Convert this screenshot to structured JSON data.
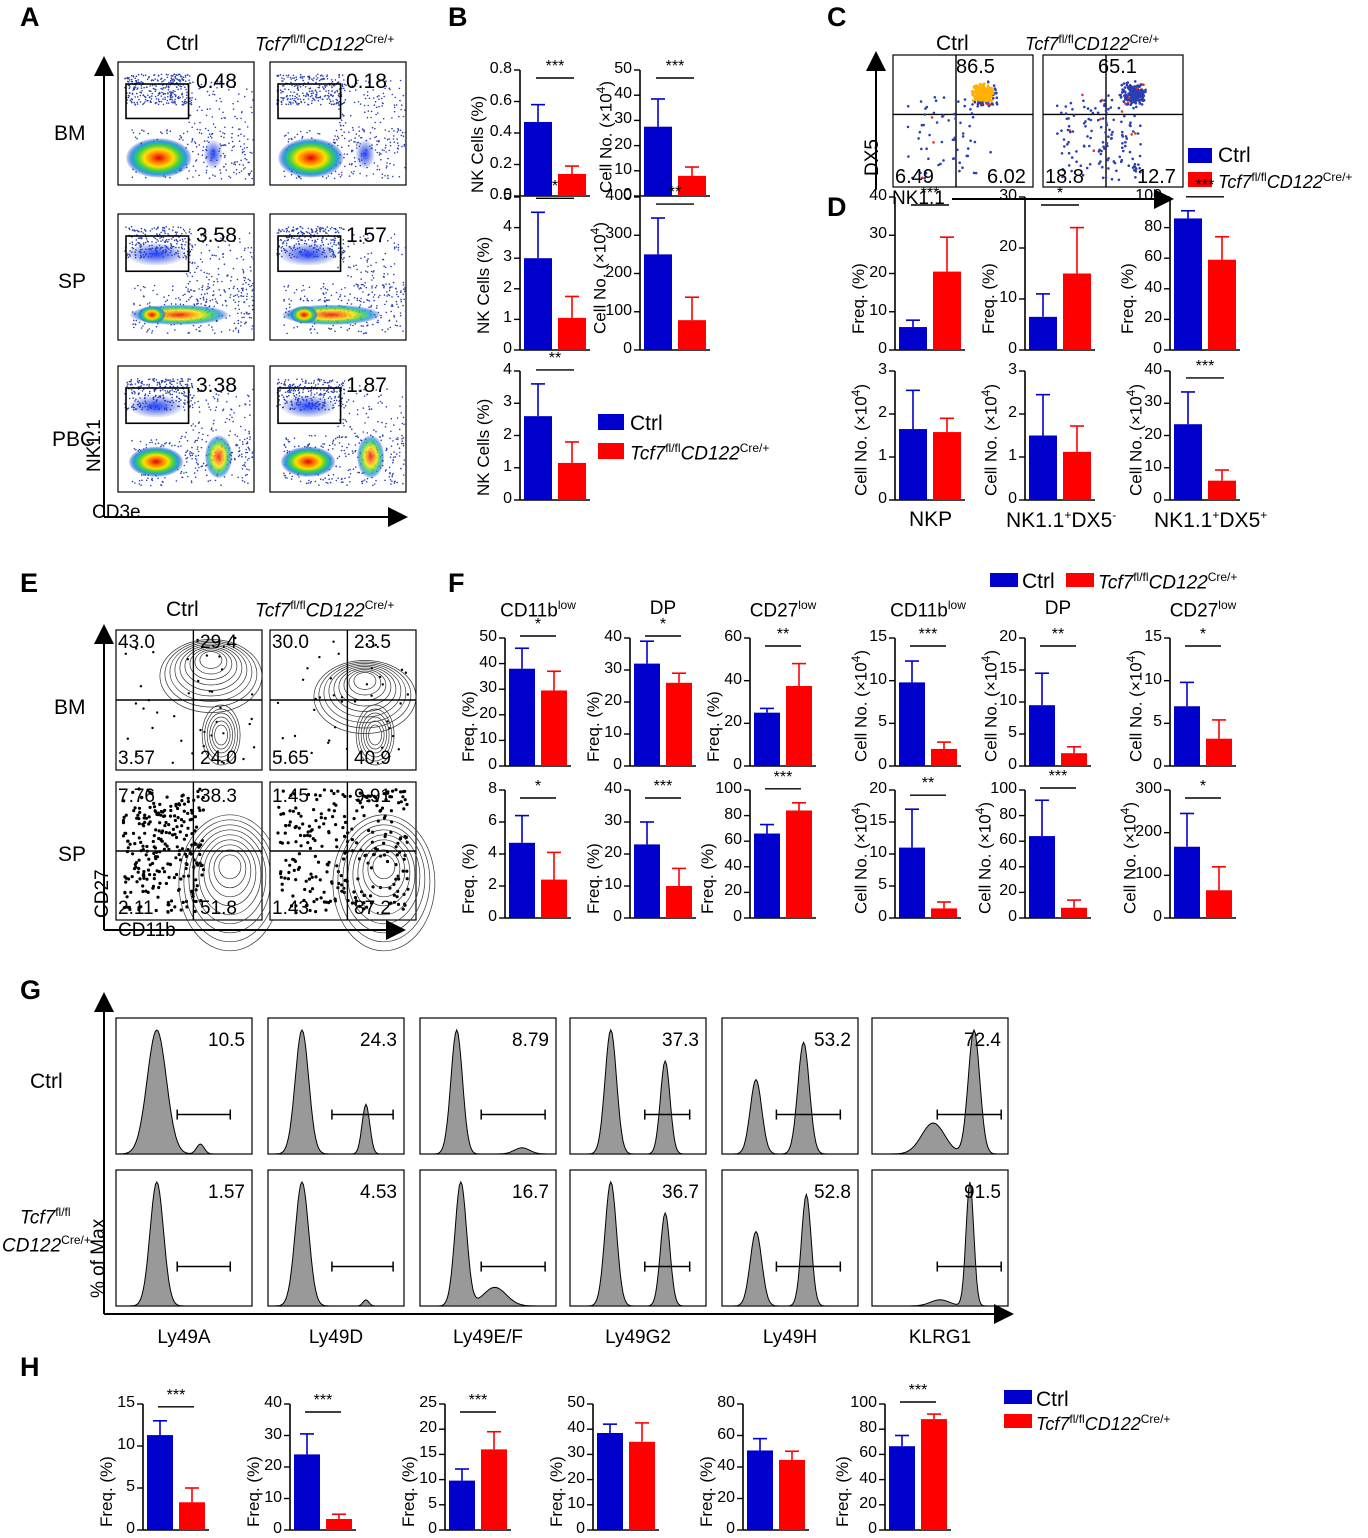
{
  "figure": {
    "panel_labels": [
      "A",
      "B",
      "C",
      "D",
      "E",
      "F",
      "G",
      "H"
    ],
    "legend": {
      "ctrl": "Ctrl",
      "ko_italic": "Tcf7",
      "ko_sup1": "fl/fl",
      "ko_italic2": "CD122",
      "ko_sup2": "Cre/+"
    },
    "colors": {
      "ctrl": "#0000cc",
      "ko": "#ff0000",
      "histogram": "#999999"
    }
  },
  "panel_A": {
    "col_labels": [
      "Ctrl",
      "Tcf7fl/flCD122Cre/+"
    ],
    "row_labels": [
      "BM",
      "SP",
      "PBC"
    ],
    "gate_values": [
      [
        "0.48",
        "0.18"
      ],
      [
        "3.58",
        "1.57"
      ],
      [
        "3.38",
        "1.87"
      ]
    ],
    "y_axis": "NK1.1",
    "x_axis": "CD3e"
  },
  "panel_C": {
    "col_labels": [
      "Ctrl",
      "Tcf7fl/flCD122Cre/+"
    ],
    "quadrants": [
      [
        "86.5",
        "6.49",
        "6.02"
      ],
      [
        "65.1",
        "18.8",
        "12.7"
      ]
    ],
    "y_axis": "DX5",
    "x_axis": "NK1.1"
  },
  "panel_E": {
    "col_labels": [
      "Ctrl",
      "Tcf7fl/flCD122Cre/+"
    ],
    "row_labels": [
      "BM",
      "SP"
    ],
    "quadrants": [
      [
        [
          "43.0",
          "29.4",
          "3.57",
          "24.0"
        ],
        [
          "30.0",
          "23.5",
          "5.65",
          "40.9"
        ]
      ],
      [
        [
          "7.76",
          "38.3",
          "2.11",
          "51.8"
        ],
        [
          "1.45",
          "9.91",
          "1.43",
          "87.2"
        ]
      ]
    ],
    "y_axis": "CD27",
    "x_axis": "CD11b"
  },
  "panel_G": {
    "markers": [
      "Ly49A",
      "Ly49D",
      "Ly49E/F",
      "Ly49G2",
      "Ly49H",
      "KLRG1"
    ],
    "row_labels": [
      "Ctrl",
      "Tcf7fl/fl CD122Cre/+"
    ],
    "values": [
      [
        "10.5",
        "24.3",
        "8.79",
        "37.3",
        "53.2",
        "72.4"
      ],
      [
        "1.57",
        "4.53",
        "16.7",
        "36.7",
        "52.8",
        "91.5"
      ]
    ],
    "y_axis": "% of Max"
  },
  "panel_D_xlabels": [
    "NKP",
    "NK1.1+DX5-",
    "NK1.1+DX5+"
  ],
  "chart_data": [
    {
      "id": "B1",
      "type": "bar",
      "ylabel": "NK Cells (%)",
      "ticks": [
        "0.0",
        "0.2",
        "0.4",
        "0.6",
        "0.8"
      ],
      "ylim": [
        0,
        0.8
      ],
      "values": [
        0.47,
        0.14
      ],
      "errors": [
        0.11,
        0.05
      ],
      "sig": "***"
    },
    {
      "id": "B2",
      "type": "bar",
      "ylabel": "Cell No. (×10⁴)",
      "ticks": [
        "0",
        "10",
        "20",
        "30",
        "40",
        "50"
      ],
      "ylim": [
        0,
        50
      ],
      "values": [
        27.5,
        8
      ],
      "errors": [
        11,
        3.5
      ],
      "sig": "***"
    },
    {
      "id": "B3",
      "type": "bar",
      "ylabel": "NK Cells (%)",
      "ticks": [
        "0",
        "1",
        "2",
        "3",
        "4",
        "5"
      ],
      "ylim": [
        0,
        5
      ],
      "values": [
        3.0,
        1.05
      ],
      "errors": [
        1.5,
        0.7
      ],
      "sig": "*"
    },
    {
      "id": "B4",
      "type": "bar",
      "ylabel": "Cell No. (×10⁴)",
      "ticks": [
        "0",
        "100",
        "200",
        "300",
        "400"
      ],
      "ylim": [
        0,
        400
      ],
      "values": [
        250,
        78
      ],
      "errors": [
        95,
        60
      ],
      "sig": "**"
    },
    {
      "id": "B5",
      "type": "bar",
      "ylabel": "NK Cells (%)",
      "ticks": [
        "0",
        "1",
        "2",
        "3",
        "4"
      ],
      "ylim": [
        0,
        4
      ],
      "values": [
        2.6,
        1.15
      ],
      "errors": [
        1.0,
        0.65
      ],
      "sig": "**"
    },
    {
      "id": "D1",
      "type": "bar",
      "ylabel": "Freq. (%)",
      "ticks": [
        "0",
        "10",
        "20",
        "30",
        "40"
      ],
      "ylim": [
        0,
        40
      ],
      "values": [
        6,
        20.5
      ],
      "errors": [
        1.8,
        9
      ],
      "sig": "***"
    },
    {
      "id": "D2",
      "type": "bar",
      "ylabel": "Freq. (%)",
      "ticks": [
        "0",
        "10",
        "20",
        "30"
      ],
      "ylim": [
        0,
        30
      ],
      "values": [
        6.5,
        15
      ],
      "errors": [
        4.5,
        9
      ],
      "sig": "*"
    },
    {
      "id": "D3",
      "type": "bar",
      "ylabel": "Freq. (%)",
      "ticks": [
        "0",
        "20",
        "40",
        "60",
        "80",
        "100"
      ],
      "ylim": [
        0,
        100
      ],
      "values": [
        86,
        59
      ],
      "errors": [
        5,
        15
      ],
      "sig": "***"
    },
    {
      "id": "D4",
      "type": "bar",
      "ylabel": "Cell No. (×10⁴)",
      "ticks": [
        "0",
        "1",
        "2",
        "3"
      ],
      "ylim": [
        0,
        3
      ],
      "values": [
        1.65,
        1.58
      ],
      "errors": [
        0.9,
        0.32
      ],
      "sig": "",
      "xlabel": "NKP"
    },
    {
      "id": "D5",
      "type": "bar",
      "ylabel": "Cell No. (×10⁴)",
      "ticks": [
        "0",
        "1",
        "2",
        "3"
      ],
      "ylim": [
        0,
        3
      ],
      "values": [
        1.5,
        1.12
      ],
      "errors": [
        0.95,
        0.6
      ],
      "sig": "",
      "xlabel": "NK1.1+DX5-"
    },
    {
      "id": "D6",
      "type": "bar",
      "ylabel": "Cell No. (×10⁴)",
      "ticks": [
        "0",
        "10",
        "20",
        "30",
        "40"
      ],
      "ylim": [
        0,
        40
      ],
      "values": [
        23.5,
        6
      ],
      "errors": [
        10,
        3.3
      ],
      "sig": "***",
      "xlabel": "NK1.1+DX5+"
    },
    {
      "id": "F1",
      "type": "bar",
      "title": "CD11blow",
      "ylabel": "Freq. (%)",
      "ticks": [
        "0",
        "10",
        "20",
        "30",
        "40",
        "50"
      ],
      "ylim": [
        0,
        50
      ],
      "values": [
        38,
        29.5
      ],
      "errors": [
        8,
        7.5
      ],
      "sig": "*"
    },
    {
      "id": "F2",
      "type": "bar",
      "title": "DP",
      "ylabel": "Freq. (%)",
      "ticks": [
        "0",
        "10",
        "20",
        "30",
        "40"
      ],
      "ylim": [
        0,
        40
      ],
      "values": [
        32,
        26
      ],
      "errors": [
        7,
        3
      ],
      "sig": "*"
    },
    {
      "id": "F3",
      "type": "bar",
      "title": "CD27low",
      "ylabel": "Freq. (%)",
      "ticks": [
        "0",
        "20",
        "40",
        "60"
      ],
      "ylim": [
        0,
        60
      ],
      "values": [
        25,
        37.5
      ],
      "errors": [
        2,
        10.5
      ],
      "sig": "**"
    },
    {
      "id": "F4",
      "type": "bar",
      "title": "CD11blow",
      "ylabel": "Cell No. (×10⁴)",
      "ticks": [
        "0",
        "5",
        "10",
        "15"
      ],
      "ylim": [
        0,
        15
      ],
      "values": [
        9.8,
        2
      ],
      "errors": [
        2.5,
        0.8
      ],
      "sig": "***"
    },
    {
      "id": "F5",
      "type": "bar",
      "title": "DP",
      "ylabel": "Cell No. (×10⁴)",
      "ticks": [
        "0",
        "5",
        "10",
        "15",
        "20"
      ],
      "ylim": [
        0,
        20
      ],
      "values": [
        9.5,
        2
      ],
      "errors": [
        5,
        1
      ],
      "sig": "**"
    },
    {
      "id": "F6",
      "type": "bar",
      "title": "CD27low",
      "ylabel": "Cell No. (×10⁴)",
      "ticks": [
        "0",
        "5",
        "10",
        "15"
      ],
      "ylim": [
        0,
        15
      ],
      "values": [
        7,
        3.2
      ],
      "errors": [
        2.8,
        2.2
      ],
      "sig": "*"
    },
    {
      "id": "F7",
      "type": "bar",
      "ylabel": "Freq. (%)",
      "ticks": [
        "0",
        "2",
        "4",
        "6",
        "8"
      ],
      "ylim": [
        0,
        8
      ],
      "values": [
        4.7,
        2.4
      ],
      "errors": [
        1.7,
        1.7
      ],
      "sig": "*"
    },
    {
      "id": "F8",
      "type": "bar",
      "ylabel": "Freq. (%)",
      "ticks": [
        "0",
        "10",
        "20",
        "30",
        "40"
      ],
      "ylim": [
        0,
        40
      ],
      "values": [
        23,
        10
      ],
      "errors": [
        7,
        5.5
      ],
      "sig": "***"
    },
    {
      "id": "F9",
      "type": "bar",
      "ylabel": "Freq. (%)",
      "ticks": [
        "0",
        "20",
        "40",
        "60",
        "80",
        "100"
      ],
      "ylim": [
        0,
        100
      ],
      "values": [
        66,
        84
      ],
      "errors": [
        7,
        6
      ],
      "sig": "***"
    },
    {
      "id": "F10",
      "type": "bar",
      "ylabel": "Cell No. (×10⁴)",
      "ticks": [
        "0",
        "5",
        "10",
        "15",
        "20"
      ],
      "ylim": [
        0,
        20
      ],
      "values": [
        11,
        1.5
      ],
      "errors": [
        6,
        1
      ],
      "sig": "**"
    },
    {
      "id": "F11",
      "type": "bar",
      "ylabel": "Cell No. (×10⁴)",
      "ticks": [
        "0",
        "20",
        "40",
        "60",
        "80",
        "100"
      ],
      "ylim": [
        0,
        100
      ],
      "values": [
        64,
        8
      ],
      "errors": [
        28,
        6
      ],
      "sig": "***"
    },
    {
      "id": "F12",
      "type": "bar",
      "ylabel": "Cell No. (×10⁴)",
      "ticks": [
        "0",
        "100",
        "200",
        "300"
      ],
      "ylim": [
        0,
        300
      ],
      "values": [
        167,
        65
      ],
      "errors": [
        78,
        55
      ],
      "sig": "*"
    },
    {
      "id": "H1",
      "type": "bar",
      "ylabel": "Freq. (%)",
      "ticks": [
        "0",
        "5",
        "10",
        "15"
      ],
      "ylim": [
        0,
        15
      ],
      "values": [
        11.3,
        3.3
      ],
      "errors": [
        1.7,
        1.7
      ],
      "sig": "***"
    },
    {
      "id": "H2",
      "type": "bar",
      "ylabel": "Freq. (%)",
      "ticks": [
        "0",
        "10",
        "20",
        "30",
        "40"
      ],
      "ylim": [
        0,
        40
      ],
      "values": [
        24,
        3.5
      ],
      "errors": [
        6.5,
        1.5
      ],
      "sig": "***"
    },
    {
      "id": "H3",
      "type": "bar",
      "ylabel": "Freq. (%)",
      "ticks": [
        "0",
        "5",
        "10",
        "15",
        "20",
        "25"
      ],
      "ylim": [
        0,
        25
      ],
      "values": [
        9.8,
        16
      ],
      "errors": [
        2.3,
        3.5
      ],
      "sig": "***"
    },
    {
      "id": "H4",
      "type": "bar",
      "ylabel": "Freq. (%)",
      "ticks": [
        "0",
        "10",
        "20",
        "30",
        "40",
        "50"
      ],
      "ylim": [
        0,
        50
      ],
      "values": [
        38.5,
        35
      ],
      "errors": [
        3.5,
        7.5
      ],
      "sig": ""
    },
    {
      "id": "H5",
      "type": "bar",
      "ylabel": "Freq. (%)",
      "ticks": [
        "0",
        "20",
        "40",
        "60",
        "80"
      ],
      "ylim": [
        0,
        80
      ],
      "values": [
        50.5,
        44.5
      ],
      "errors": [
        7.5,
        5.5
      ],
      "sig": ""
    },
    {
      "id": "H6",
      "type": "bar",
      "ylabel": "Freq. (%)",
      "ticks": [
        "0",
        "20",
        "40",
        "60",
        "80",
        "100"
      ],
      "ylim": [
        0,
        100
      ],
      "values": [
        66.5,
        88
      ],
      "errors": [
        8.5,
        4
      ],
      "sig": "***"
    }
  ]
}
